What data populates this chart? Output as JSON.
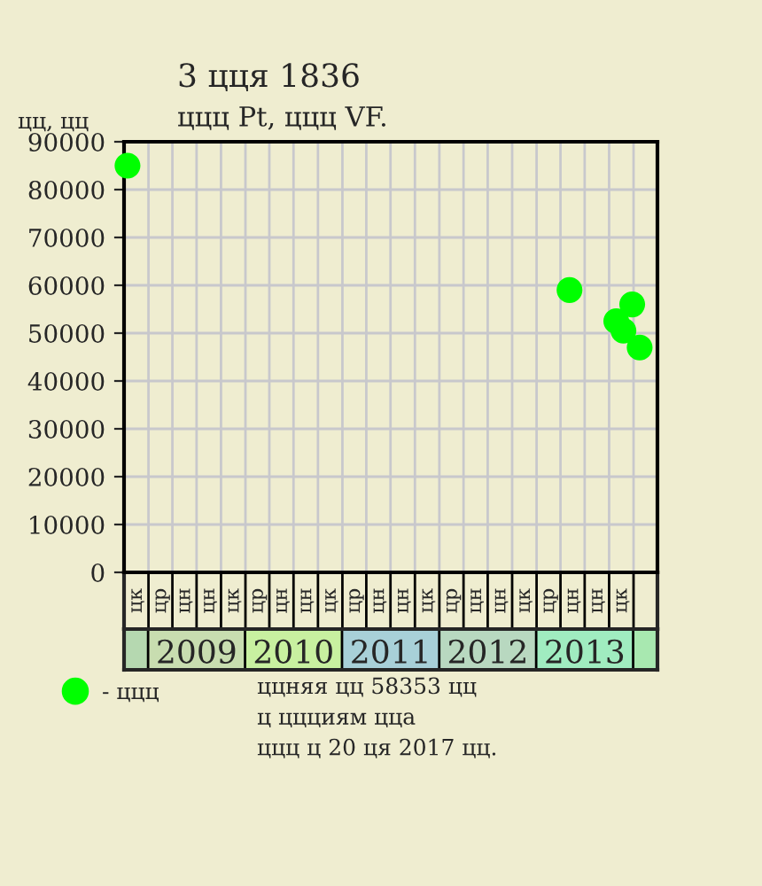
{
  "chart_data": {
    "type": "scatter",
    "title": "3 цця 1836",
    "subtitle": "ццц Pt, ццц VF.",
    "ylabel": "цц, цц",
    "x": [
      "2008-10-14",
      "2013-05-05",
      "2013-10-28",
      "2013-11-24",
      "2013-12-27",
      "2014-01-24"
    ],
    "series": [
      {
        "name": "- ццц",
        "color": "#00ff00",
        "values": [
          85000,
          59000,
          52500,
          50500,
          56000,
          47000
        ]
      }
    ],
    "xlim": [
      "2008-10-01",
      "2014-04-01"
    ],
    "xticks": [
      {
        "value": "2009-07-01",
        "label": "2009"
      },
      {
        "value": "2010-07-01",
        "label": "2010"
      },
      {
        "value": "2011-07-01",
        "label": "2011"
      },
      {
        "value": "2012-07-01",
        "label": "2012"
      },
      {
        "value": "2013-07-01",
        "label": "2013"
      }
    ],
    "ylim": [
      0,
      90000
    ],
    "yticks": [
      0,
      10000,
      20000,
      30000,
      40000,
      50000,
      60000,
      70000,
      80000,
      90000
    ],
    "grid": true,
    "marker": "circle",
    "legend": "bottom left",
    "annotations": [
      "ццняя цц 58353 цц\nц ццциям цца\nццц ц 20 ця 2017 цц.",
      "цк",
      "цр",
      "цн",
      "цн",
      "цк",
      "цр",
      "цн",
      "цн",
      "цк",
      "цр",
      "цн",
      "цн",
      "цк",
      "цр",
      "цн",
      "цн",
      "цк",
      "цр",
      "цн",
      "цн",
      "цк"
    ]
  }
}
